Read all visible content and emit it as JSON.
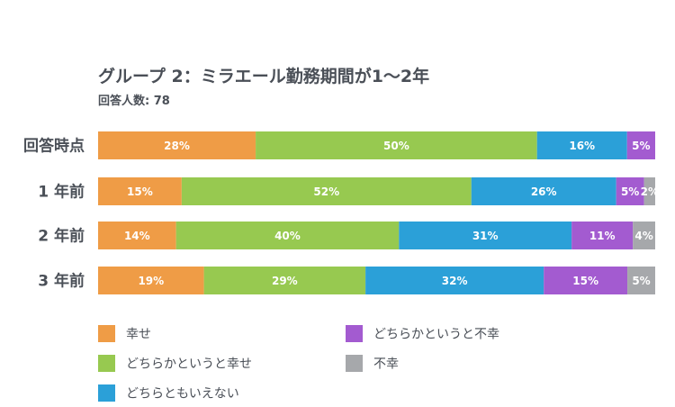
{
  "chart_data": {
    "type": "bar",
    "orientation": "horizontal-stacked-100",
    "title": "グループ 2：ミラエール勤務期間が1〜2年",
    "subtitle": "回答人数: 78",
    "categories": [
      "回答時点",
      "1 年前",
      "2 年前",
      "3 年前"
    ],
    "series": [
      {
        "name": "幸せ",
        "color": "#ef9c46",
        "values": [
          28,
          15,
          14,
          19
        ]
      },
      {
        "name": "どちらかというと幸せ",
        "color": "#97c950",
        "values": [
          50,
          52,
          40,
          29
        ]
      },
      {
        "name": "どちらともいえない",
        "color": "#2ba0d8",
        "values": [
          16,
          26,
          31,
          32
        ]
      },
      {
        "name": "どちらかというと不幸",
        "color": "#a35bd0",
        "values": [
          5,
          5,
          11,
          15
        ]
      },
      {
        "name": "不幸",
        "color": "#a6a8ab",
        "values": [
          0,
          2,
          4,
          5
        ]
      }
    ],
    "value_suffix": "%",
    "xlim": [
      0,
      100
    ],
    "grid": false,
    "legend_position": "bottom"
  }
}
